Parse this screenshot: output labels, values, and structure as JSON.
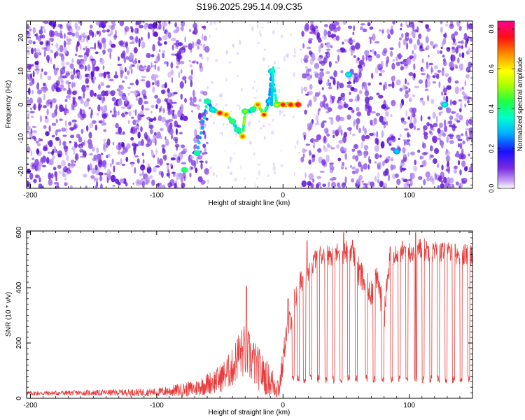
{
  "title": "S196.2025.295.14.09.C35",
  "colors": {
    "signal": "#e83a3a",
    "noise_dark": "#7a1fe0",
    "noise_light": "#c9a8f4",
    "axis": "#000000",
    "background": "#ffffff"
  },
  "chart_data": [
    {
      "type": "heatmap",
      "name": "spectrogram",
      "xlabel": "Height of straight line (km)",
      "ylabel": "Frequency (Hz)",
      "xlim": [
        -203,
        150
      ],
      "ylim": [
        -25,
        25
      ],
      "xticks": [
        -200,
        -100,
        0,
        100
      ],
      "xtick_labels": [
        "-200",
        "-100",
        "0",
        "100"
      ],
      "yticks": [
        -20,
        -10,
        0,
        10,
        20
      ],
      "ytick_labels": [
        "-20",
        "-10",
        "0",
        "10",
        "20"
      ],
      "colorbar": {
        "label": "Normalized spectral amplitude",
        "range": [
          0.0,
          0.84
        ],
        "ticks": [
          0.0,
          0.2,
          0.4,
          0.6,
          0.8
        ],
        "tick_labels": [
          "0.0",
          "0.2",
          "0.4",
          "0.6",
          "0.8"
        ],
        "colors": [
          "#ffffff",
          "#7a2be2",
          "#0000ff",
          "#00dfff",
          "#00ff7f",
          "#a0ff00",
          "#ffff00",
          "#ff8000",
          "#ff0000",
          "#ff00a0"
        ]
      },
      "blank_height_regions_km": [
        [
          -60,
          15
        ],
        [
          -77,
          -74
        ],
        [
          50,
          52
        ],
        [
          88,
          90
        ]
      ],
      "signal_track": [
        {
          "x": -78,
          "f": -19.5,
          "a": 0.45
        },
        {
          "x": -68,
          "f": -14.5,
          "a": 0.4
        },
        {
          "x": -60,
          "f": 1.0,
          "a": 0.4
        },
        {
          "x": -56,
          "f": -1.5,
          "a": 0.35
        },
        {
          "x": -50,
          "f": -2.5,
          "a": 0.8
        },
        {
          "x": -45,
          "f": -3.0,
          "a": 0.7
        },
        {
          "x": -40,
          "f": -5.0,
          "a": 0.45
        },
        {
          "x": -36,
          "f": -7.5,
          "a": 0.4
        },
        {
          "x": -32,
          "f": -9.5,
          "a": 0.7
        },
        {
          "x": -30,
          "f": -2.0,
          "a": 0.5
        },
        {
          "x": -24,
          "f": -1.5,
          "a": 0.4
        },
        {
          "x": -20,
          "f": 0.0,
          "a": 0.7
        },
        {
          "x": -15,
          "f": -3.0,
          "a": 0.75
        },
        {
          "x": -11,
          "f": 1.0,
          "a": 0.3
        },
        {
          "x": -9,
          "f": 10.0,
          "a": 0.35
        },
        {
          "x": -5,
          "f": 0.0,
          "a": 0.55
        },
        {
          "x": 0,
          "f": 0.0,
          "a": 0.8
        },
        {
          "x": 6,
          "f": 0.0,
          "a": 0.8
        },
        {
          "x": 12,
          "f": 0.0,
          "a": 0.85
        },
        {
          "x": 52,
          "f": 9.0,
          "a": 0.35
        },
        {
          "x": 90,
          "f": -14.0,
          "a": 0.3
        },
        {
          "x": 128,
          "f": 0.0,
          "a": 0.35
        }
      ]
    },
    {
      "type": "line",
      "name": "snr",
      "xlabel": "Height of straight line (km)",
      "ylabel": "SNR (10 * v/v)",
      "xlim": [
        -203,
        150
      ],
      "ylim": [
        0,
        605
      ],
      "xticks": [
        -200,
        -100,
        0,
        100
      ],
      "xtick_labels": [
        "-200",
        "-100",
        "0",
        "100"
      ],
      "yticks": [
        0,
        200,
        400,
        600
      ],
      "ytick_labels": [
        "0",
        "200",
        "400",
        "600"
      ],
      "series": [
        {
          "name": "SNR",
          "color": "#e83a3a",
          "envelope_x": [
            -203,
            -150,
            -100,
            -70,
            -50,
            -40,
            -35,
            -30,
            -20,
            -10,
            -3,
            0,
            2,
            5,
            10,
            15,
            20,
            25,
            30,
            40,
            50,
            55,
            60,
            65,
            70,
            75,
            80,
            85,
            90,
            100,
            110,
            120,
            130,
            140,
            150
          ],
          "envelope_y": [
            18,
            20,
            22,
            35,
            70,
            110,
            160,
            170,
            110,
            60,
            40,
            130,
            220,
            270,
            370,
            430,
            450,
            500,
            520,
            520,
            530,
            540,
            450,
            420,
            390,
            430,
            300,
            520,
            530,
            530,
            540,
            530,
            525,
            520,
            520
          ],
          "noise_amplitude": [
            8,
            10,
            15,
            30,
            50,
            70,
            90,
            100,
            80,
            60,
            45,
            50,
            50,
            50,
            50,
            45,
            40,
            40,
            40,
            40,
            45,
            40,
            60,
            60,
            60,
            50,
            60,
            45,
            40,
            40,
            45,
            40,
            40,
            40,
            40
          ],
          "peaks": [
            {
              "x": -29,
              "y": 405
            },
            {
              "x": 4,
              "y": 360
            },
            {
              "x": 19,
              "y": 570
            },
            {
              "x": 48,
              "y": 600
            },
            {
              "x": 105,
              "y": 600
            }
          ],
          "dropout_heights_km": [
            8,
            12,
            17,
            22,
            28,
            34,
            40,
            46,
            52,
            58,
            66,
            72,
            79,
            86,
            92,
            98,
            105,
            111,
            117,
            123,
            129,
            135,
            141,
            147
          ],
          "dropout_level": 70
        }
      ]
    }
  ]
}
